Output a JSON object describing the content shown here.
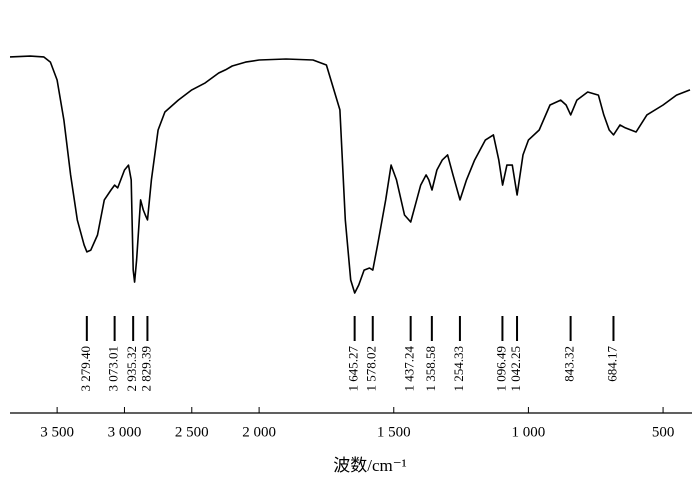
{
  "chart_data": {
    "type": "line",
    "x_label": "波数/cm⁻¹",
    "xlim": [
      3850,
      400
    ],
    "x_scale_change": {
      "at": 2000,
      "ratio": 2
    },
    "xticks": [
      {
        "value": 3500,
        "label": "3 500"
      },
      {
        "value": 3000,
        "label": "3 000"
      },
      {
        "value": 2500,
        "label": "2 500"
      },
      {
        "value": 2000,
        "label": "2 000"
      },
      {
        "value": 1500,
        "label": "1 500"
      },
      {
        "value": 1000,
        "label": "1 000"
      },
      500
    ],
    "ylim": [
      0,
      100
    ],
    "series": [
      {
        "color": "#000000",
        "x": [
          3850,
          3700,
          3600,
          3550,
          3500,
          3450,
          3400,
          3350,
          3300,
          3279,
          3250,
          3200,
          3150,
          3100,
          3073,
          3050,
          3000,
          2970,
          2950,
          2935,
          2925,
          2910,
          2880,
          2860,
          2845,
          2829,
          2800,
          2750,
          2700,
          2600,
          2500,
          2400,
          2300,
          2250,
          2200,
          2100,
          2000,
          1900,
          1800,
          1750,
          1700,
          1680,
          1660,
          1645,
          1630,
          1610,
          1590,
          1578,
          1560,
          1530,
          1510,
          1490,
          1460,
          1437,
          1420,
          1400,
          1380,
          1370,
          1358,
          1340,
          1320,
          1300,
          1280,
          1254,
          1230,
          1200,
          1160,
          1130,
          1110,
          1096,
          1080,
          1060,
          1042,
          1020,
          1000,
          960,
          920,
          880,
          860,
          843,
          820,
          780,
          740,
          720,
          700,
          684,
          660,
          640,
          600,
          560,
          500,
          450,
          400
        ],
        "values": [
          93.5,
          93.8,
          93.5,
          91.5,
          84.6,
          69.2,
          48.1,
          30.8,
          21.2,
          18.5,
          19.2,
          25,
          38.5,
          42.3,
          44.2,
          43.1,
          50,
          51.9,
          46.2,
          11.5,
          6.9,
          15.4,
          38.5,
          34.6,
          32.7,
          30.8,
          46.2,
          65.4,
          72.3,
          76.9,
          80.8,
          83.5,
          87.3,
          88.5,
          90,
          91.5,
          92.3,
          92.7,
          92.3,
          90.4,
          73.1,
          30.8,
          7.7,
          2.7,
          5.8,
          11.5,
          12.3,
          11.5,
          21.2,
          38.5,
          51.9,
          46.2,
          32.7,
          30,
          36.5,
          44.2,
          48.1,
          46.2,
          42.3,
          50,
          53.8,
          55.8,
          48.1,
          38.5,
          46.2,
          53.8,
          61.5,
          63.5,
          53.8,
          44.2,
          51.9,
          51.9,
          40.4,
          55.8,
          61.5,
          65.4,
          75,
          76.9,
          75,
          71.2,
          76.9,
          80,
          78.8,
          71.2,
          65.4,
          63.5,
          67.3,
          66.2,
          64.6,
          71.2,
          75,
          78.8,
          80.8
        ]
      }
    ],
    "peak_labels": [
      {
        "value": 3279.4,
        "label": "3 279.40"
      },
      {
        "value": 3073.01,
        "label": "3 073.01"
      },
      {
        "value": 2935.32,
        "label": "2 935.32"
      },
      {
        "value": 2829.39,
        "label": "2 829.39"
      },
      {
        "value": 1645.27,
        "label": "1 645.27"
      },
      {
        "value": 1578.02,
        "label": "1 578.02"
      },
      {
        "value": 1437.24,
        "label": "1 437.24"
      },
      {
        "value": 1358.58,
        "label": "1 358.58"
      },
      {
        "value": 1254.33,
        "label": "1 254.33"
      },
      {
        "value": 1096.49,
        "label": "1 096.49"
      },
      {
        "value": 1042.25,
        "label": "1 042.25"
      },
      {
        "value": 843.32,
        "label": "843.32"
      },
      {
        "value": 684.17,
        "label": "684.17"
      }
    ]
  }
}
